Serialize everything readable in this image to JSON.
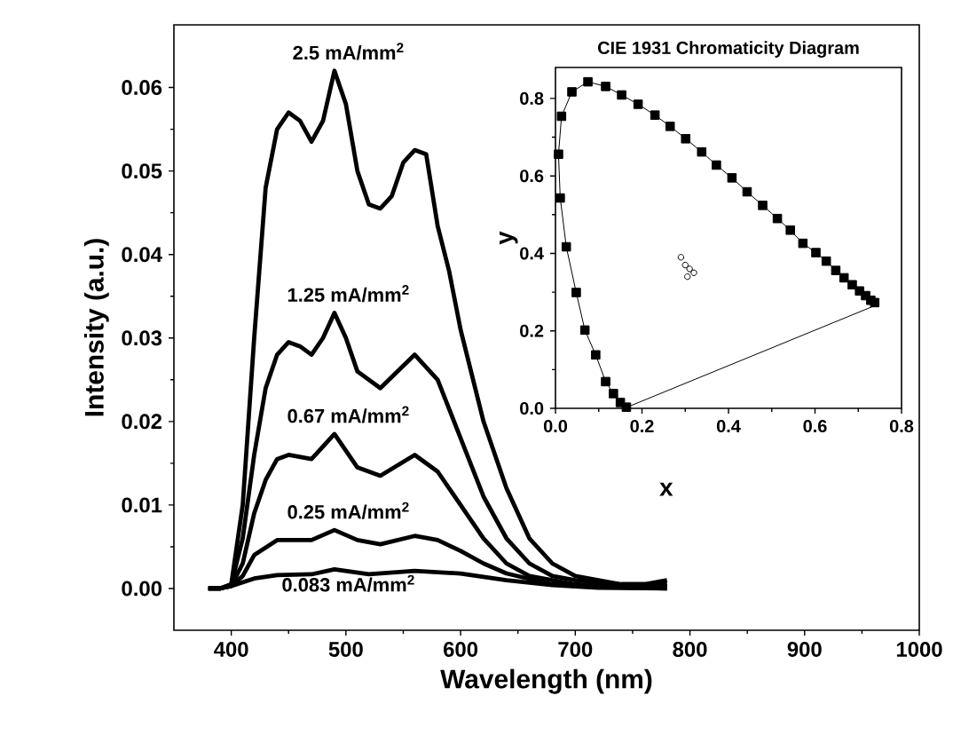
{
  "chart_data": [
    {
      "type": "line",
      "xlabel": "Wavelength (nm)",
      "ylabel": "Intensity (a.u.)",
      "xlim": [
        350,
        1000
      ],
      "ylim": [
        -0.005,
        0.0675
      ],
      "xticks": [
        400,
        500,
        600,
        700,
        800,
        900,
        1000
      ],
      "yticks": [
        {
          "value": 0,
          "label": "0.00"
        },
        {
          "value": 0.01,
          "label": "0.01"
        },
        {
          "value": 0.02,
          "label": "0.02"
        },
        {
          "value": 0.03,
          "label": "0.03"
        },
        {
          "value": 0.04,
          "label": "0.04"
        },
        {
          "value": 0.05,
          "label": "0.05"
        },
        {
          "value": 0.06,
          "label": "0.06"
        }
      ],
      "marker": "none",
      "line_style": "solid",
      "grid": false,
      "series": [
        {
          "name": "2.5 mA/mm$^{2}$",
          "color": "#000000",
          "x": [
            380,
            390,
            400,
            410,
            420,
            430,
            440,
            450,
            460,
            470,
            480,
            490,
            500,
            510,
            520,
            530,
            540,
            550,
            560,
            570,
            580,
            590,
            600,
            620,
            640,
            660,
            680,
            700,
            720,
            740,
            760,
            780
          ],
          "values": [
            0,
            0,
            0.0005,
            0.01,
            0.03,
            0.048,
            0.055,
            0.057,
            0.056,
            0.0535,
            0.056,
            0.062,
            0.058,
            0.05,
            0.046,
            0.0455,
            0.047,
            0.051,
            0.0525,
            0.052,
            0.0434,
            0.038,
            0.031,
            0.02,
            0.012,
            0.006,
            0.003,
            0.0015,
            0.001,
            0.0005,
            0.0005,
            0.001
          ]
        },
        {
          "name": "1.25 mA/mm$^{2}$",
          "color": "#000000",
          "x": [
            380,
            390,
            400,
            410,
            420,
            430,
            440,
            450,
            460,
            470,
            480,
            490,
            500,
            510,
            530,
            560,
            580,
            600,
            620,
            640,
            660,
            680,
            700,
            740,
            780
          ],
          "values": [
            0,
            0,
            0.0005,
            0.006,
            0.016,
            0.024,
            0.028,
            0.0295,
            0.029,
            0.028,
            0.03,
            0.033,
            0.03,
            0.026,
            0.024,
            0.028,
            0.025,
            0.018,
            0.011,
            0.006,
            0.003,
            0.0015,
            0.001,
            0.0005,
            0.0005
          ]
        },
        {
          "name": "0.67 mA/mm$^{2}$",
          "color": "#000000",
          "x": [
            380,
            390,
            400,
            410,
            420,
            430,
            440,
            450,
            470,
            490,
            510,
            530,
            560,
            580,
            600,
            620,
            640,
            660,
            700,
            740,
            780
          ],
          "values": [
            0,
            0,
            0.0003,
            0.003,
            0.009,
            0.013,
            0.0155,
            0.016,
            0.0155,
            0.0185,
            0.0145,
            0.0135,
            0.016,
            0.014,
            0.01,
            0.006,
            0.003,
            0.0015,
            0.0005,
            0.0002,
            0.0003
          ]
        },
        {
          "name": "0.25 mA/mm$^{2}$",
          "color": "#000000",
          "x": [
            380,
            390,
            400,
            410,
            420,
            440,
            470,
            490,
            510,
            530,
            560,
            580,
            600,
            620,
            640,
            680,
            720,
            780
          ],
          "values": [
            0,
            0,
            0.0003,
            0.0015,
            0.004,
            0.0058,
            0.0058,
            0.007,
            0.0058,
            0.0053,
            0.0063,
            0.0058,
            0.0045,
            0.003,
            0.0018,
            0.0005,
            0.0002,
            0
          ]
        },
        {
          "name": "0.083 mA/mm$^{2}$",
          "color": "#000000",
          "x": [
            380,
            390,
            400,
            420,
            440,
            470,
            490,
            520,
            560,
            600,
            640,
            680,
            720,
            780
          ],
          "values": [
            0,
            0,
            0.0003,
            0.0012,
            0.0016,
            0.0017,
            0.0023,
            0.0017,
            0.0021,
            0.0018,
            0.001,
            0.0004,
            0.0001,
            0
          ]
        }
      ]
    },
    {
      "type": "scatter",
      "title": "CIE 1931 Chromaticity Diagram",
      "xlabel": "x",
      "ylabel": "y",
      "xlim": [
        0,
        0.8
      ],
      "ylim": [
        0,
        0.88
      ],
      "xticks": [
        {
          "value": 0,
          "label": "0.0"
        },
        {
          "value": 0.2,
          "label": "0.2"
        },
        {
          "value": 0.4,
          "label": "0.4"
        },
        {
          "value": 0.6,
          "label": "0.6"
        },
        {
          "value": 0.8,
          "label": "0.8"
        }
      ],
      "yticks": [
        {
          "value": 0,
          "label": "0.0"
        },
        {
          "value": 0.2,
          "label": "0.2"
        },
        {
          "value": 0.4,
          "label": "0.4"
        },
        {
          "value": 0.6,
          "label": "0.6"
        },
        {
          "value": 0.8,
          "label": "0.8"
        }
      ],
      "grid": false,
      "series": [
        {
          "type": "line",
          "marker": "square",
          "color": "#000000",
          "x": [
            0.164,
            0.15,
            0.134,
            0.116,
            0.093,
            0.068,
            0.048,
            0.025,
            0.011,
            0.007,
            0.014,
            0.038,
            0.075,
            0.116,
            0.153,
            0.191,
            0.23,
            0.265,
            0.301,
            0.338,
            0.372,
            0.408,
            0.443,
            0.479,
            0.513,
            0.543,
            0.572,
            0.602,
            0.626,
            0.648,
            0.667,
            0.686,
            0.703,
            0.717,
            0.729,
            0.738
          ],
          "values": [
            0.003,
            0.015,
            0.038,
            0.069,
            0.138,
            0.202,
            0.299,
            0.417,
            0.543,
            0.656,
            0.754,
            0.817,
            0.843,
            0.831,
            0.809,
            0.785,
            0.757,
            0.728,
            0.696,
            0.662,
            0.628,
            0.595,
            0.559,
            0.524,
            0.49,
            0.46,
            0.426,
            0.402,
            0.38,
            0.356,
            0.337,
            0.319,
            0.303,
            0.291,
            0.279,
            0.273
          ]
        },
        {
          "type": "line",
          "marker": "none",
          "color": "#000000",
          "x": [
            0.738,
            0.17
          ],
          "values": [
            0.265,
            0.005
          ]
        },
        {
          "type": "scatter",
          "marker": "circle",
          "color": "#000000",
          "x": [
            0.29,
            0.3,
            0.31,
            0.32,
            0.305
          ],
          "values": [
            0.39,
            0.37,
            0.36,
            0.35,
            0.34
          ]
        }
      ]
    }
  ]
}
